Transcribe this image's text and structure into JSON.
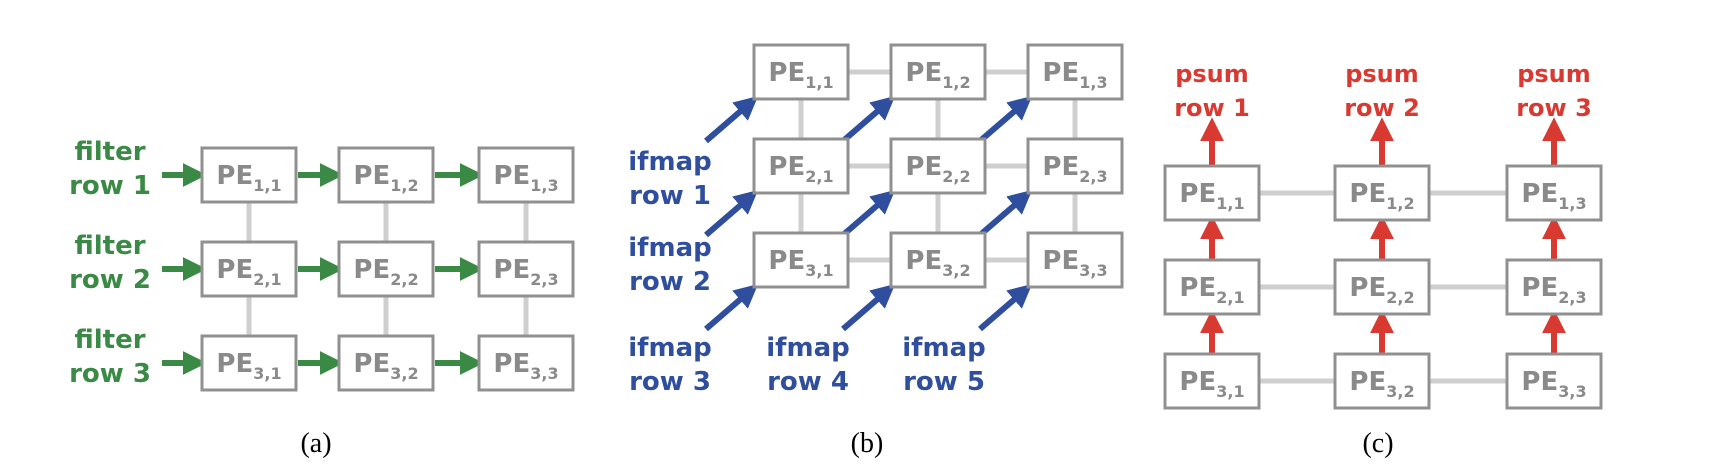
{
  "colors": {
    "filter": "#3a8a45",
    "ifmap": "#2f4f9e",
    "psum": "#d83a32",
    "box": "#909090",
    "link": "#cfcfcf"
  },
  "pe_prefix": "PE",
  "panels": {
    "a": {
      "caption": "(a)",
      "labels": [
        [
          "filter",
          "row 1"
        ],
        [
          "filter",
          "row 2"
        ],
        [
          "filter",
          "row 3"
        ]
      ]
    },
    "b": {
      "caption": "(b)",
      "labels": [
        [
          "ifmap",
          "row 1"
        ],
        [
          "ifmap",
          "row 2"
        ],
        [
          "ifmap",
          "row 3"
        ],
        [
          "ifmap",
          "row 4"
        ],
        [
          "ifmap",
          "row 5"
        ]
      ]
    },
    "c": {
      "caption": "(c)",
      "labels": [
        [
          "psum",
          "row 1"
        ],
        [
          "psum",
          "row 2"
        ],
        [
          "psum",
          "row 3"
        ]
      ]
    }
  }
}
